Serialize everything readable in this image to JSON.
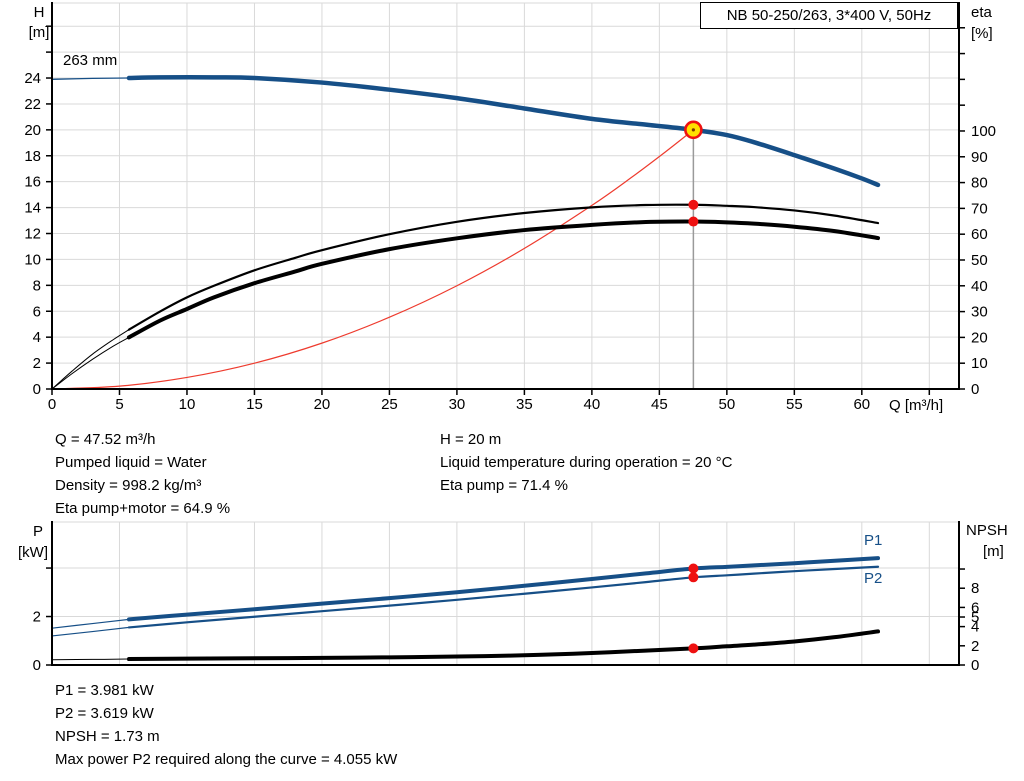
{
  "title_box": "NB 50-250/263, 3*400 V, 50Hz",
  "axis_titles": {
    "top_left_1": "H",
    "top_left_2": "[m]",
    "top_right_1": "eta",
    "top_right_2": "[%]",
    "bottom_left_1": "P",
    "bottom_left_2": "[kW]",
    "bottom_right_1": "NPSH",
    "bottom_right_2": "[m]"
  },
  "curve_labels": {
    "impeller": "263 mm",
    "p1": "P1",
    "p2": "P2"
  },
  "colors": {
    "curve_blue": "#164F87",
    "curve_black": "#000000",
    "curve_red": "#ee3b2e",
    "marker_red": "#ee1111",
    "marker_yellow": "#ffe000",
    "grid": "#d9d9d9",
    "guide": "#9a9a9a",
    "axis": "#000000"
  },
  "info_blocks": {
    "top_left": [
      "Q = 47.52 m³/h",
      "Pumped liquid = Water",
      "Density = 998.2 kg/m³",
      "Eta pump+motor = 64.9 %"
    ],
    "top_right": [
      "H = 20 m",
      "Liquid temperature during operation = 20 °C",
      "Eta pump = 71.4 %"
    ],
    "bottom": [
      "P1 = 3.981 kW",
      "P2 = 3.619 kW",
      "NPSH = 1.73 m",
      "Max power P2 required along the curve = 4.055 kW"
    ]
  },
  "chart_data": [
    {
      "type": "line",
      "title": "NB 50-250/263, 3*400 V, 50Hz",
      "xlabel": "Q [m³/h]",
      "ylabel_left": "H [m]",
      "ylabel_right": "eta [%]",
      "x_range": [
        0,
        67.2
      ],
      "y_left_range": [
        0,
        29.79
      ],
      "y_right_range": [
        0,
        149.6
      ],
      "x_grid": [
        5,
        10,
        15,
        20,
        25,
        30,
        35,
        40,
        45,
        50,
        55,
        60,
        65
      ],
      "x_ticks": [
        0,
        5,
        10,
        15,
        20,
        25,
        30,
        35,
        40,
        45,
        50,
        55,
        60,
        65
      ],
      "x_tick_labels": [
        0,
        5,
        10,
        15,
        20,
        25,
        30,
        35,
        40,
        45,
        50,
        55,
        60
      ],
      "y_left_grid": [
        2,
        4,
        6,
        8,
        10,
        12,
        14,
        16,
        18,
        20,
        22,
        24,
        26,
        28
      ],
      "y_left_ticks": [
        0,
        2,
        4,
        6,
        8,
        10,
        12,
        14,
        16,
        18,
        20,
        22,
        24,
        26,
        28
      ],
      "y_left_tick_labels": [
        0,
        2,
        4,
        6,
        8,
        10,
        12,
        14,
        16,
        18,
        20,
        22,
        24
      ],
      "y_right_ticks": [
        0,
        10,
        20,
        30,
        40,
        50,
        60,
        70,
        80,
        90,
        100,
        110,
        120,
        130,
        140
      ],
      "y_right_tick_labels": [
        0,
        10,
        20,
        30,
        40,
        50,
        60,
        70,
        80,
        90,
        100
      ],
      "duty_line_x": 47.52,
      "duty_line_from": 20,
      "series": [
        {
          "name": "system-curve",
          "axis": "left",
          "color": "curve_red",
          "width": 1.2,
          "points": [
            [
              0,
              0
            ],
            [
              5,
              0.22
            ],
            [
              10,
              0.89
            ],
            [
              15,
              1.99
            ],
            [
              20,
              3.54
            ],
            [
              25,
              5.54
            ],
            [
              30,
              7.97
            ],
            [
              35,
              10.85
            ],
            [
              40,
              14.17
            ],
            [
              43,
              16.38
            ],
            [
              45.5,
              18.34
            ],
            [
              47.52,
              20
            ]
          ]
        },
        {
          "name": "eta-pump-curve",
          "label": "eta pump",
          "axis": "right",
          "color": "curve_black",
          "width": 2.2,
          "thin_width": 1,
          "thin": [
            [
              0,
              0
            ],
            [
              1.5,
              7
            ],
            [
              3,
              13.5
            ],
            [
              4.5,
              19
            ],
            [
              5.7,
              23
            ]
          ],
          "points": [
            [
              5.7,
              23
            ],
            [
              8,
              30
            ],
            [
              10,
              35.5
            ],
            [
              12,
              40
            ],
            [
              15,
              46
            ],
            [
              18,
              50.8
            ],
            [
              20,
              53.8
            ],
            [
              25,
              60
            ],
            [
              30,
              64.8
            ],
            [
              35,
              68.2
            ],
            [
              40,
              70.4
            ],
            [
              44,
              71.3
            ],
            [
              47.52,
              71.4
            ],
            [
              50,
              71
            ],
            [
              52,
              70.5
            ],
            [
              55,
              69.2
            ],
            [
              58,
              67.2
            ],
            [
              61.2,
              64.3
            ]
          ]
        },
        {
          "name": "eta-pump-motor-curve",
          "label": "eta pump+motor",
          "axis": "right",
          "color": "curve_black",
          "width": 4,
          "thin_width": 1,
          "thin": [
            [
              0,
              0
            ],
            [
              1.5,
              6
            ],
            [
              3,
              11.5
            ],
            [
              4.5,
              16.5
            ],
            [
              5.7,
              20
            ]
          ],
          "points": [
            [
              5.7,
              20
            ],
            [
              8,
              26.5
            ],
            [
              10,
              31
            ],
            [
              12,
              35.5
            ],
            [
              15,
              41
            ],
            [
              18,
              45.5
            ],
            [
              20,
              48.5
            ],
            [
              25,
              54.2
            ],
            [
              30,
              58.4
            ],
            [
              35,
              61.6
            ],
            [
              40,
              63.6
            ],
            [
              44,
              64.7
            ],
            [
              47.52,
              64.9
            ],
            [
              50,
              64.6
            ],
            [
              52,
              64.1
            ],
            [
              55,
              62.9
            ],
            [
              58,
              61.2
            ],
            [
              61.2,
              58.5
            ]
          ]
        },
        {
          "name": "qh-curve",
          "label": "263 mm",
          "axis": "left",
          "color": "curve_blue",
          "width": 4.5,
          "thin_width": 1.3,
          "thin": [
            [
              0,
              23.9
            ],
            [
              3,
              23.97
            ],
            [
              5.7,
              24
            ]
          ],
          "points": [
            [
              5.7,
              24
            ],
            [
              8,
              24.05
            ],
            [
              12,
              24.05
            ],
            [
              15,
              24
            ],
            [
              20,
              23.65
            ],
            [
              25,
              23.1
            ],
            [
              30,
              22.45
            ],
            [
              35,
              21.65
            ],
            [
              40,
              20.85
            ],
            [
              44,
              20.4
            ],
            [
              47.52,
              20
            ],
            [
              50,
              19.6
            ],
            [
              52,
              19.05
            ],
            [
              55,
              18.05
            ],
            [
              58,
              17
            ],
            [
              60,
              16.25
            ],
            [
              61.2,
              15.75
            ]
          ]
        }
      ],
      "markers": [
        {
          "x": 47.52,
          "y": 20,
          "axis": "left",
          "kind": "ring",
          "label": "duty point Q=47.52 H=20"
        },
        {
          "x": 47.52,
          "y": 71.4,
          "axis": "right",
          "kind": "dot",
          "label": "eta pump 71.4 %"
        },
        {
          "x": 47.52,
          "y": 64.9,
          "axis": "right",
          "kind": "dot",
          "label": "eta pump+motor 64.9 %"
        }
      ]
    },
    {
      "type": "line",
      "xlabel": "",
      "ylabel_left": "P [kW]",
      "ylabel_right": "NPSH [m]",
      "x_range": [
        0,
        67.2
      ],
      "y_left_range": [
        0,
        5.9
      ],
      "y_right_range": [
        0,
        14.9
      ],
      "x_grid": [
        5,
        10,
        15,
        20,
        25,
        30,
        35,
        40,
        45,
        50,
        55,
        60,
        65
      ],
      "x_ticks": [],
      "x_tick_labels": [],
      "y_left_grid": [
        2,
        4
      ],
      "y_left_ticks": [
        0,
        2,
        4
      ],
      "y_left_tick_labels": [
        0,
        2
      ],
      "y_right_ticks": [
        0,
        2,
        4,
        5,
        6,
        8,
        10
      ],
      "y_right_tick_labels": [
        0,
        2,
        4,
        5,
        6,
        8
      ],
      "series": [
        {
          "name": "npsh-curve",
          "label": "NPSH",
          "axis": "right",
          "color": "curve_black",
          "width": 4,
          "thin_width": 1,
          "thin": [
            [
              0,
              0.55
            ],
            [
              3,
              0.58
            ],
            [
              5.7,
              0.62
            ]
          ],
          "points": [
            [
              5.7,
              0.62
            ],
            [
              10,
              0.66
            ],
            [
              15,
              0.7
            ],
            [
              20,
              0.74
            ],
            [
              25,
              0.8
            ],
            [
              30,
              0.88
            ],
            [
              33,
              0.95
            ],
            [
              36,
              1.05
            ],
            [
              40,
              1.25
            ],
            [
              44,
              1.5
            ],
            [
              47.52,
              1.73
            ],
            [
              50,
              1.95
            ],
            [
              52,
              2.12
            ],
            [
              55,
              2.45
            ],
            [
              58,
              2.9
            ],
            [
              61.2,
              3.5
            ]
          ]
        },
        {
          "name": "p2-curve",
          "label": "P2",
          "axis": "left",
          "color": "curve_blue",
          "width": 2.2,
          "thin_width": 1.2,
          "thin": [
            [
              0,
              1.2
            ],
            [
              3,
              1.38
            ],
            [
              5.7,
              1.55
            ]
          ],
          "points": [
            [
              5.7,
              1.55
            ],
            [
              10,
              1.76
            ],
            [
              15,
              1.99
            ],
            [
              20,
              2.22
            ],
            [
              25,
              2.45
            ],
            [
              30,
              2.69
            ],
            [
              35,
              2.94
            ],
            [
              40,
              3.2
            ],
            [
              44,
              3.42
            ],
            [
              47.52,
              3.619
            ],
            [
              50,
              3.7
            ],
            [
              52,
              3.77
            ],
            [
              55,
              3.87
            ],
            [
              58,
              3.96
            ],
            [
              61.2,
              4.055
            ]
          ]
        },
        {
          "name": "p1-curve",
          "label": "P1",
          "axis": "left",
          "color": "curve_blue",
          "width": 4,
          "thin_width": 1.2,
          "thin": [
            [
              0,
              1.52
            ],
            [
              3,
              1.71
            ],
            [
              5.7,
              1.88
            ]
          ],
          "points": [
            [
              5.7,
              1.88
            ],
            [
              10,
              2.08
            ],
            [
              15,
              2.3
            ],
            [
              20,
              2.53
            ],
            [
              25,
              2.76
            ],
            [
              30,
              3.0
            ],
            [
              35,
              3.27
            ],
            [
              40,
              3.55
            ],
            [
              44,
              3.78
            ],
            [
              47.52,
              3.981
            ],
            [
              50,
              4.05
            ],
            [
              52,
              4.11
            ],
            [
              55,
              4.2
            ],
            [
              58,
              4.3
            ],
            [
              61.2,
              4.41
            ]
          ]
        }
      ],
      "markers": [
        {
          "x": 47.52,
          "y": 3.981,
          "axis": "left",
          "kind": "dot",
          "label": "P1 = 3.981 kW"
        },
        {
          "x": 47.52,
          "y": 3.619,
          "axis": "left",
          "kind": "dot",
          "label": "P2 = 3.619 kW"
        },
        {
          "x": 47.52,
          "y": 1.73,
          "axis": "right",
          "kind": "dot",
          "label": "NPSH = 1.73 m"
        }
      ]
    }
  ]
}
